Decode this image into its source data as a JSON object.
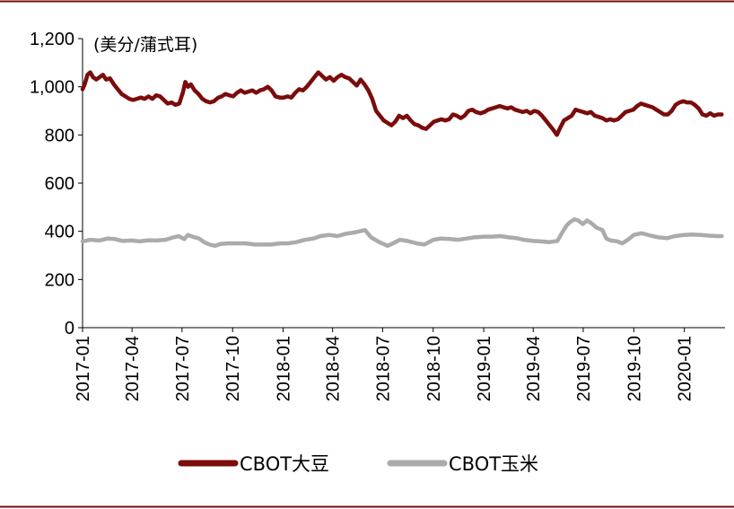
{
  "chart_data": {
    "type": "line",
    "unit_label": "(美分/蒲式耳)",
    "ylim": [
      0,
      1200
    ],
    "yticks": [
      "0",
      "200",
      "400",
      "600",
      "800",
      "1,000",
      "1,200"
    ],
    "xlim": [
      "2017-01-01",
      "2020-03-15"
    ],
    "xticks": [
      "2017-01",
      "2017-04",
      "2017-07",
      "2017-10",
      "2018-01",
      "2018-04",
      "2018-07",
      "2018-10",
      "2019-01",
      "2019-04",
      "2019-07",
      "2019-10",
      "2020-01"
    ],
    "legend_position": "bottom",
    "grid": false,
    "series": [
      {
        "name": "CBOT大豆",
        "color": "#7b0c0c",
        "points": [
          [
            "2017-01-01",
            990
          ],
          [
            "2017-01-05",
            1010
          ],
          [
            "2017-01-10",
            1050
          ],
          [
            "2017-01-15",
            1060
          ],
          [
            "2017-01-20",
            1040
          ],
          [
            "2017-01-26",
            1030
          ],
          [
            "2017-02-01",
            1040
          ],
          [
            "2017-02-07",
            1050
          ],
          [
            "2017-02-13",
            1030
          ],
          [
            "2017-02-20",
            1035
          ],
          [
            "2017-02-27",
            1010
          ],
          [
            "2017-03-06",
            990
          ],
          [
            "2017-03-13",
            970
          ],
          [
            "2017-03-20",
            960
          ],
          [
            "2017-03-27",
            950
          ],
          [
            "2017-04-03",
            945
          ],
          [
            "2017-04-10",
            950
          ],
          [
            "2017-04-17",
            955
          ],
          [
            "2017-04-24",
            950
          ],
          [
            "2017-05-01",
            960
          ],
          [
            "2017-05-08",
            950
          ],
          [
            "2017-05-15",
            965
          ],
          [
            "2017-05-22",
            960
          ],
          [
            "2017-05-29",
            945
          ],
          [
            "2017-06-05",
            930
          ],
          [
            "2017-06-12",
            935
          ],
          [
            "2017-06-19",
            925
          ],
          [
            "2017-06-26",
            930
          ],
          [
            "2017-07-03",
            980
          ],
          [
            "2017-07-07",
            1020
          ],
          [
            "2017-07-12",
            1000
          ],
          [
            "2017-07-17",
            1010
          ],
          [
            "2017-07-24",
            985
          ],
          [
            "2017-07-31",
            970
          ],
          [
            "2017-08-07",
            950
          ],
          [
            "2017-08-14",
            940
          ],
          [
            "2017-08-21",
            935
          ],
          [
            "2017-08-28",
            940
          ],
          [
            "2017-09-05",
            955
          ],
          [
            "2017-09-11",
            960
          ],
          [
            "2017-09-18",
            970
          ],
          [
            "2017-09-25",
            965
          ],
          [
            "2017-10-02",
            960
          ],
          [
            "2017-10-09",
            975
          ],
          [
            "2017-10-16",
            985
          ],
          [
            "2017-10-23",
            975
          ],
          [
            "2017-10-30",
            980
          ],
          [
            "2017-11-06",
            985
          ],
          [
            "2017-11-13",
            975
          ],
          [
            "2017-11-20",
            985
          ],
          [
            "2017-11-27",
            990
          ],
          [
            "2017-12-04",
            1000
          ],
          [
            "2017-12-11",
            985
          ],
          [
            "2017-12-18",
            960
          ],
          [
            "2017-12-26",
            955
          ],
          [
            "2018-01-02",
            955
          ],
          [
            "2018-01-09",
            960
          ],
          [
            "2018-01-16",
            955
          ],
          [
            "2018-01-23",
            975
          ],
          [
            "2018-01-30",
            990
          ],
          [
            "2018-02-06",
            985
          ],
          [
            "2018-02-13",
            1000
          ],
          [
            "2018-02-20",
            1020
          ],
          [
            "2018-02-27",
            1040
          ],
          [
            "2018-03-06",
            1060
          ],
          [
            "2018-03-13",
            1045
          ],
          [
            "2018-03-20",
            1030
          ],
          [
            "2018-03-27",
            1040
          ],
          [
            "2018-04-03",
            1025
          ],
          [
            "2018-04-10",
            1040
          ],
          [
            "2018-04-17",
            1050
          ],
          [
            "2018-04-24",
            1040
          ],
          [
            "2018-05-01",
            1035
          ],
          [
            "2018-05-08",
            1020
          ],
          [
            "2018-05-15",
            1005
          ],
          [
            "2018-05-22",
            1030
          ],
          [
            "2018-05-29",
            1010
          ],
          [
            "2018-06-05",
            985
          ],
          [
            "2018-06-12",
            950
          ],
          [
            "2018-06-19",
            900
          ],
          [
            "2018-06-26",
            880
          ],
          [
            "2018-07-03",
            860
          ],
          [
            "2018-07-10",
            850
          ],
          [
            "2018-07-17",
            840
          ],
          [
            "2018-07-24",
            855
          ],
          [
            "2018-07-31",
            880
          ],
          [
            "2018-08-07",
            870
          ],
          [
            "2018-08-14",
            880
          ],
          [
            "2018-08-21",
            860
          ],
          [
            "2018-08-28",
            845
          ],
          [
            "2018-09-04",
            840
          ],
          [
            "2018-09-11",
            830
          ],
          [
            "2018-09-18",
            825
          ],
          [
            "2018-09-25",
            840
          ],
          [
            "2018-10-02",
            855
          ],
          [
            "2018-10-09",
            860
          ],
          [
            "2018-10-16",
            865
          ],
          [
            "2018-10-23",
            860
          ],
          [
            "2018-10-30",
            865
          ],
          [
            "2018-11-06",
            885
          ],
          [
            "2018-11-13",
            880
          ],
          [
            "2018-11-20",
            870
          ],
          [
            "2018-11-27",
            880
          ],
          [
            "2018-12-04",
            900
          ],
          [
            "2018-12-11",
            905
          ],
          [
            "2018-12-18",
            895
          ],
          [
            "2018-12-26",
            890
          ],
          [
            "2019-01-02",
            895
          ],
          [
            "2019-01-09",
            905
          ],
          [
            "2019-01-16",
            910
          ],
          [
            "2019-01-23",
            915
          ],
          [
            "2019-01-30",
            920
          ],
          [
            "2019-02-06",
            915
          ],
          [
            "2019-02-13",
            910
          ],
          [
            "2019-02-20",
            915
          ],
          [
            "2019-02-27",
            905
          ],
          [
            "2019-03-06",
            900
          ],
          [
            "2019-03-13",
            895
          ],
          [
            "2019-03-20",
            900
          ],
          [
            "2019-03-27",
            890
          ],
          [
            "2019-04-03",
            900
          ],
          [
            "2019-04-10",
            895
          ],
          [
            "2019-04-17",
            880
          ],
          [
            "2019-04-24",
            860
          ],
          [
            "2019-05-01",
            840
          ],
          [
            "2019-05-08",
            820
          ],
          [
            "2019-05-14",
            800
          ],
          [
            "2019-05-20",
            830
          ],
          [
            "2019-05-27",
            860
          ],
          [
            "2019-06-03",
            870
          ],
          [
            "2019-06-10",
            880
          ],
          [
            "2019-06-17",
            905
          ],
          [
            "2019-06-24",
            900
          ],
          [
            "2019-07-01",
            895
          ],
          [
            "2019-07-08",
            890
          ],
          [
            "2019-07-15",
            895
          ],
          [
            "2019-07-22",
            880
          ],
          [
            "2019-07-29",
            875
          ],
          [
            "2019-08-05",
            870
          ],
          [
            "2019-08-12",
            860
          ],
          [
            "2019-08-19",
            865
          ],
          [
            "2019-08-26",
            860
          ],
          [
            "2019-09-02",
            865
          ],
          [
            "2019-09-09",
            880
          ],
          [
            "2019-09-16",
            895
          ],
          [
            "2019-09-23",
            900
          ],
          [
            "2019-09-30",
            905
          ],
          [
            "2019-10-07",
            920
          ],
          [
            "2019-10-14",
            930
          ],
          [
            "2019-10-21",
            925
          ],
          [
            "2019-10-28",
            920
          ],
          [
            "2019-11-04",
            915
          ],
          [
            "2019-11-11",
            905
          ],
          [
            "2019-11-18",
            895
          ],
          [
            "2019-11-25",
            885
          ],
          [
            "2019-12-02",
            885
          ],
          [
            "2019-12-09",
            900
          ],
          [
            "2019-12-16",
            925
          ],
          [
            "2019-12-23",
            935
          ],
          [
            "2019-12-30",
            940
          ],
          [
            "2020-01-06",
            935
          ],
          [
            "2020-01-13",
            935
          ],
          [
            "2020-01-20",
            925
          ],
          [
            "2020-01-27",
            910
          ],
          [
            "2020-02-03",
            885
          ],
          [
            "2020-02-10",
            880
          ],
          [
            "2020-02-17",
            890
          ],
          [
            "2020-02-24",
            880
          ],
          [
            "2020-03-02",
            885
          ],
          [
            "2020-03-09",
            885
          ]
        ]
      },
      {
        "name": "CBOT玉米",
        "color": "#ababab",
        "points": [
          [
            "2017-01-01",
            358
          ],
          [
            "2017-01-15",
            365
          ],
          [
            "2017-02-01",
            362
          ],
          [
            "2017-02-15",
            370
          ],
          [
            "2017-03-01",
            368
          ],
          [
            "2017-03-15",
            360
          ],
          [
            "2017-04-01",
            362
          ],
          [
            "2017-04-15",
            358
          ],
          [
            "2017-05-01",
            363
          ],
          [
            "2017-05-15",
            362
          ],
          [
            "2017-06-01",
            365
          ],
          [
            "2017-06-15",
            375
          ],
          [
            "2017-06-25",
            380
          ],
          [
            "2017-07-05",
            368
          ],
          [
            "2017-07-12",
            385
          ],
          [
            "2017-07-20",
            378
          ],
          [
            "2017-08-01",
            370
          ],
          [
            "2017-08-10",
            355
          ],
          [
            "2017-08-20",
            345
          ],
          [
            "2017-08-30",
            340
          ],
          [
            "2017-09-10",
            348
          ],
          [
            "2017-09-25",
            350
          ],
          [
            "2017-10-10",
            350
          ],
          [
            "2017-10-25",
            350
          ],
          [
            "2017-11-10",
            345
          ],
          [
            "2017-11-25",
            345
          ],
          [
            "2017-12-10",
            345
          ],
          [
            "2017-12-26",
            350
          ],
          [
            "2018-01-10",
            350
          ],
          [
            "2018-01-25",
            355
          ],
          [
            "2018-02-10",
            365
          ],
          [
            "2018-02-25",
            370
          ],
          [
            "2018-03-10",
            380
          ],
          [
            "2018-03-25",
            385
          ],
          [
            "2018-04-10",
            380
          ],
          [
            "2018-04-25",
            390
          ],
          [
            "2018-05-10",
            395
          ],
          [
            "2018-05-20",
            400
          ],
          [
            "2018-05-30",
            405
          ],
          [
            "2018-06-10",
            375
          ],
          [
            "2018-06-25",
            355
          ],
          [
            "2018-07-10",
            340
          ],
          [
            "2018-07-20",
            350
          ],
          [
            "2018-08-01",
            365
          ],
          [
            "2018-08-15",
            360
          ],
          [
            "2018-09-01",
            350
          ],
          [
            "2018-09-15",
            345
          ],
          [
            "2018-10-01",
            365
          ],
          [
            "2018-10-15",
            370
          ],
          [
            "2018-11-01",
            368
          ],
          [
            "2018-11-15",
            365
          ],
          [
            "2018-12-01",
            370
          ],
          [
            "2018-12-15",
            375
          ],
          [
            "2019-01-01",
            378
          ],
          [
            "2019-01-15",
            378
          ],
          [
            "2019-02-01",
            380
          ],
          [
            "2019-02-15",
            375
          ],
          [
            "2019-03-01",
            372
          ],
          [
            "2019-03-15",
            365
          ],
          [
            "2019-04-01",
            360
          ],
          [
            "2019-04-15",
            358
          ],
          [
            "2019-05-01",
            355
          ],
          [
            "2019-05-15",
            360
          ],
          [
            "2019-05-25",
            400
          ],
          [
            "2019-06-01",
            425
          ],
          [
            "2019-06-08",
            440
          ],
          [
            "2019-06-15",
            450
          ],
          [
            "2019-06-22",
            445
          ],
          [
            "2019-06-30",
            430
          ],
          [
            "2019-07-08",
            445
          ],
          [
            "2019-07-15",
            435
          ],
          [
            "2019-07-25",
            415
          ],
          [
            "2019-08-05",
            405
          ],
          [
            "2019-08-12",
            370
          ],
          [
            "2019-08-20",
            362
          ],
          [
            "2019-09-01",
            358
          ],
          [
            "2019-09-10",
            350
          ],
          [
            "2019-09-20",
            365
          ],
          [
            "2019-10-01",
            385
          ],
          [
            "2019-10-15",
            392
          ],
          [
            "2019-11-01",
            382
          ],
          [
            "2019-11-15",
            375
          ],
          [
            "2019-12-01",
            372
          ],
          [
            "2019-12-15",
            380
          ],
          [
            "2020-01-01",
            385
          ],
          [
            "2020-01-15",
            387
          ],
          [
            "2020-02-01",
            385
          ],
          [
            "2020-02-15",
            382
          ],
          [
            "2020-03-01",
            380
          ],
          [
            "2020-03-09",
            380
          ]
        ]
      }
    ]
  }
}
